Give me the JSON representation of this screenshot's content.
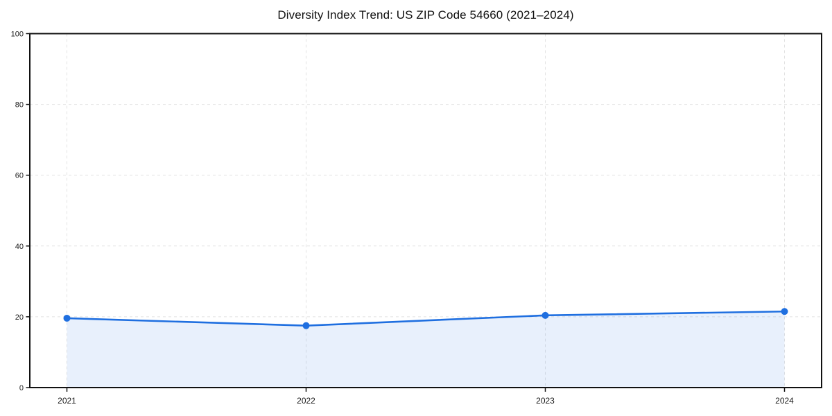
{
  "page": {
    "background": "#ffffff"
  },
  "chart_data": {
    "type": "area",
    "title": "Diversity Index Trend: US ZIP Code 54660 (2021–2024)",
    "x": [
      "2021",
      "2022",
      "2023",
      "2024"
    ],
    "series": [
      {
        "name": "Diversity Index",
        "values": [
          19.6,
          17.5,
          20.4,
          21.5
        ]
      }
    ],
    "xlabel": "",
    "ylabel": "",
    "ylim": [
      0,
      100
    ],
    "yticks": [
      0,
      20,
      40,
      60,
      80,
      100
    ],
    "grid": true,
    "grid_style": "dashed",
    "legend": false,
    "line_color": "#1f6fe0",
    "fill_color": "#1f6fe0",
    "fill_opacity": 0.1,
    "marker": "circle",
    "grid_color": "#e2e2e2",
    "axis_color": "#111111",
    "tick_label_color": "#1a1a1a"
  }
}
